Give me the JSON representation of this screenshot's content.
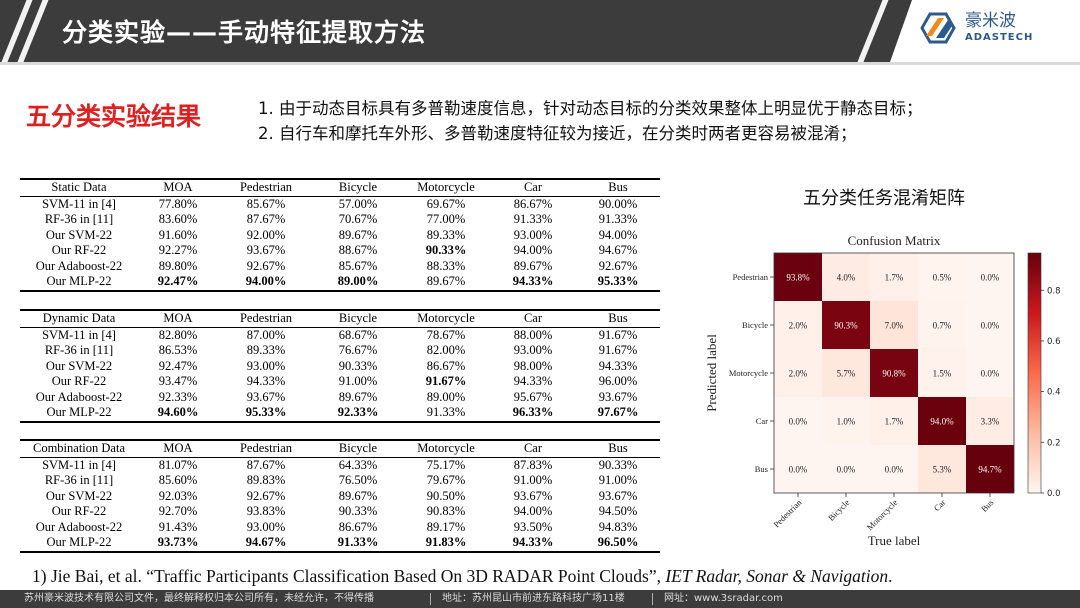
{
  "header": {
    "title": "分类实验——手动特征提取方法",
    "logo_cn": "豪米波",
    "logo_en": "ADASTECH"
  },
  "section_title": "五分类实验结果",
  "notes": [
    "1.  由于动态目标具有多普勒速度信息，针对动态目标的分类效果整体上明显优于静态目标；",
    "2.  自行车和摩托车外形、多普勒速度特征较为接近，在分类时两者更容易被混淆；"
  ],
  "tables": [
    {
      "header": [
        "Static Data",
        "MOA",
        "Pedestrian",
        "Bicycle",
        "Motorcycle",
        "Car",
        "Bus"
      ],
      "rows": [
        {
          "cells": [
            "SVM-11 in [4]",
            "77.80%",
            "85.67%",
            "57.00%",
            "69.67%",
            "86.67%",
            "90.00%"
          ],
          "bold": []
        },
        {
          "cells": [
            "RF-36 in [11]",
            "83.60%",
            "87.67%",
            "70.67%",
            "77.00%",
            "91.33%",
            "91.33%"
          ],
          "bold": []
        },
        {
          "cells": [
            "Our SVM-22",
            "91.60%",
            "92.00%",
            "89.67%",
            "89.33%",
            "93.00%",
            "94.00%"
          ],
          "bold": []
        },
        {
          "cells": [
            "Our RF-22",
            "92.27%",
            "93.67%",
            "88.67%",
            "90.33%",
            "94.00%",
            "94.67%"
          ],
          "bold": [
            4
          ]
        },
        {
          "cells": [
            "Our Adaboost-22",
            "89.80%",
            "92.67%",
            "85.67%",
            "88.33%",
            "89.67%",
            "92.67%"
          ],
          "bold": []
        },
        {
          "cells": [
            "Our MLP-22",
            "92.47%",
            "94.00%",
            "89.00%",
            "89.67%",
            "94.33%",
            "95.33%"
          ],
          "bold": [
            1,
            2,
            3,
            5,
            6
          ]
        }
      ]
    },
    {
      "header": [
        "Dynamic Data",
        "MOA",
        "Pedestrian",
        "Bicycle",
        "Motorcycle",
        "Car",
        "Bus"
      ],
      "rows": [
        {
          "cells": [
            "SVM-11 in [4]",
            "82.80%",
            "87.00%",
            "68.67%",
            "78.67%",
            "88.00%",
            "91.67%"
          ],
          "bold": []
        },
        {
          "cells": [
            "RF-36 in [11]",
            "86.53%",
            "89.33%",
            "76.67%",
            "82.00%",
            "93.00%",
            "91.67%"
          ],
          "bold": []
        },
        {
          "cells": [
            "Our SVM-22",
            "92.47%",
            "93.00%",
            "90.33%",
            "86.67%",
            "98.00%",
            "94.33%"
          ],
          "bold": []
        },
        {
          "cells": [
            "Our RF-22",
            "93.47%",
            "94.33%",
            "91.00%",
            "91.67%",
            "94.33%",
            "96.00%"
          ],
          "bold": [
            4
          ]
        },
        {
          "cells": [
            "Our Adaboost-22",
            "92.33%",
            "93.67%",
            "89.67%",
            "89.00%",
            "95.67%",
            "93.67%"
          ],
          "bold": []
        },
        {
          "cells": [
            "Our MLP-22",
            "94.60%",
            "95.33%",
            "92.33%",
            "91.33%",
            "96.33%",
            "97.67%"
          ],
          "bold": [
            1,
            2,
            3,
            5,
            6
          ]
        }
      ]
    },
    {
      "header": [
        "Combination Data",
        "MOA",
        "Pedestrian",
        "Bicycle",
        "Motorcycle",
        "Car",
        "Bus"
      ],
      "rows": [
        {
          "cells": [
            "SVM-11 in [4]",
            "81.07%",
            "87.67%",
            "64.33%",
            "75.17%",
            "87.83%",
            "90.33%"
          ],
          "bold": []
        },
        {
          "cells": [
            "RF-36 in [11]",
            "85.60%",
            "89.83%",
            "76.50%",
            "79.67%",
            "91.00%",
            "91.00%"
          ],
          "bold": []
        },
        {
          "cells": [
            "Our SVM-22",
            "92.03%",
            "92.67%",
            "89.67%",
            "90.50%",
            "93.67%",
            "93.67%"
          ],
          "bold": []
        },
        {
          "cells": [
            "Our RF-22",
            "92.70%",
            "93.83%",
            "90.33%",
            "90.83%",
            "94.00%",
            "94.50%"
          ],
          "bold": []
        },
        {
          "cells": [
            "Our Adaboost-22",
            "91.43%",
            "93.00%",
            "86.67%",
            "89.17%",
            "93.50%",
            "94.83%"
          ],
          "bold": []
        },
        {
          "cells": [
            "Our MLP-22",
            "93.73%",
            "94.67%",
            "91.33%",
            "91.83%",
            "94.33%",
            "96.50%"
          ],
          "bold": [
            1,
            2,
            3,
            4,
            5,
            6
          ]
        }
      ]
    }
  ],
  "confusion_caption": "五分类任务混淆矩阵",
  "chart_data": {
    "type": "heatmap",
    "title": "Confusion Matrix",
    "xlabel": "True label",
    "ylabel": "Predicted label",
    "x_labels": [
      "Pedestrian",
      "Bicycle",
      "Motorcycle",
      "Car",
      "Bus"
    ],
    "y_labels": [
      "Pedestrian",
      "Bicycle",
      "Motorcycle",
      "Car",
      "Bus"
    ],
    "values": [
      [
        0.938,
        0.04,
        0.017,
        0.005,
        0.0
      ],
      [
        0.02,
        0.903,
        0.07,
        0.007,
        0.0
      ],
      [
        0.02,
        0.057,
        0.908,
        0.015,
        0.0
      ],
      [
        0.0,
        0.01,
        0.017,
        0.94,
        0.033
      ],
      [
        0.0,
        0.0,
        0.0,
        0.053,
        0.947
      ]
    ],
    "cell_labels": [
      [
        "93.8%",
        "4.0%",
        "1.7%",
        "0.5%",
        "0.0%"
      ],
      [
        "2.0%",
        "90.3%",
        "7.0%",
        "0.7%",
        "0.0%"
      ],
      [
        "2.0%",
        "5.7%",
        "90.8%",
        "1.5%",
        "0.0%"
      ],
      [
        "0.0%",
        "1.0%",
        "1.7%",
        "94.0%",
        "3.3%"
      ],
      [
        "0.0%",
        "0.0%",
        "0.0%",
        "5.3%",
        "94.7%"
      ]
    ],
    "colorbar_ticks": [
      "0.0",
      "0.2",
      "0.4",
      "0.6",
      "0.8"
    ],
    "colorbar_range": [
      0,
      0.947
    ],
    "colormap": [
      "#fff5f0",
      "#fcbba1",
      "#fb6a4a",
      "#cb181d",
      "#67000d"
    ]
  },
  "reference": {
    "prefix": "1) Jie Bai, et al. “Traffic Participants Classification Based On 3D RADAR Point Clouds”, ",
    "venue": "IET Radar, Sonar & Navigation",
    "suffix": "."
  },
  "footer": {
    "copyright": "苏州豪米波技术有限公司文件，最终解释权归本公司所有，未经允许，不得传播",
    "address": "地址：苏州昆山市前进东路科技广场11楼",
    "website": "网址：www.3sradar.com"
  },
  "colors": {
    "header_bg": "#3c3c3c",
    "accent_red": "#e02020",
    "logo_blue": "#2d5a8c",
    "logo_orange": "#f08a1c"
  }
}
